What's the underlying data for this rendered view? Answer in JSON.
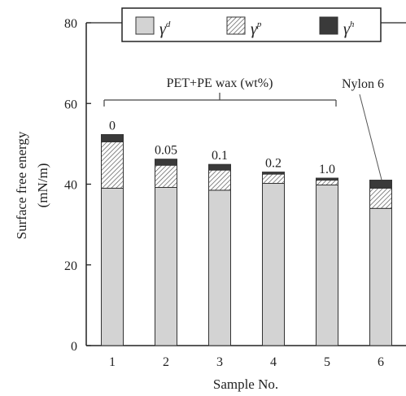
{
  "chart_data": {
    "type": "bar",
    "stacked": true,
    "categories": [
      "1",
      "2",
      "3",
      "4",
      "5",
      "6"
    ],
    "series": [
      {
        "name": "γ",
        "name_sup": "d",
        "values": [
          39.0,
          39.2,
          38.5,
          40.2,
          39.8,
          34.0
        ]
      },
      {
        "name": "γ",
        "name_sup": "p",
        "values": [
          11.5,
          5.5,
          5.0,
          2.3,
          1.2,
          5.0
        ]
      },
      {
        "name": "γ",
        "name_sup": "h",
        "values": [
          1.8,
          1.5,
          1.4,
          0.5,
          0.5,
          2.0
        ]
      }
    ],
    "bar_labels": [
      "0",
      "0.05",
      "0.1",
      "0.2",
      "1.0"
    ],
    "group_annotation": "PET+PE wax (wt%)",
    "callout": "Nylon 6",
    "xlabel": "Sample No.",
    "ylabel_line1": "Surface free energy",
    "ylabel_line2": "(mN/m)",
    "yticks": [
      "0",
      "20",
      "40",
      "60",
      "80"
    ],
    "ylim": [
      0,
      80
    ],
    "legend_position": "top",
    "colors": {
      "gamma_d": "#d3d3d3",
      "gamma_p": "#ffffff",
      "gamma_h": "#3a3a3a",
      "axis": "#222222"
    }
  }
}
